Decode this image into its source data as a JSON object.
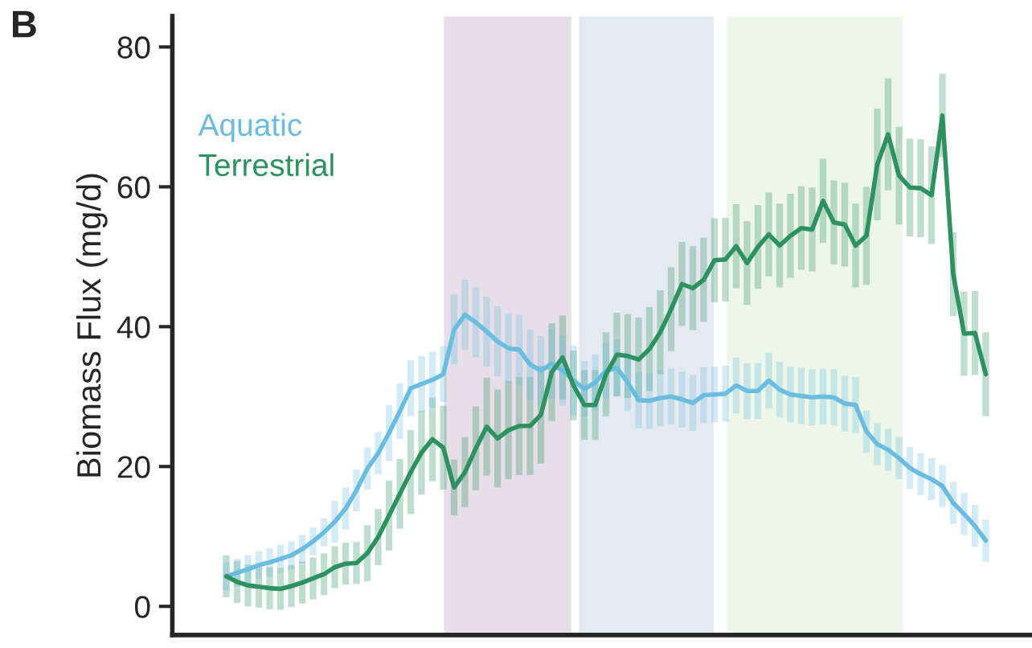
{
  "chart_data": {
    "type": "line",
    "title": "B",
    "ylabel": "Biomass Flux (mg/d)",
    "categories": [
      null,
      null,
      null,
      null,
      null,
      null,
      null,
      null,
      null,
      null,
      null,
      null,
      null,
      null,
      null,
      null,
      null,
      null,
      null,
      null,
      null,
      null,
      null,
      null,
      null,
      null,
      null,
      null,
      null,
      null,
      null,
      null,
      null,
      null,
      null,
      null,
      null,
      null,
      null,
      null,
      null,
      null,
      null,
      null,
      null,
      null,
      null,
      null,
      null,
      null,
      null,
      null,
      null,
      null,
      null,
      null,
      null,
      null,
      null,
      null,
      null,
      null,
      null,
      null,
      null,
      null,
      null,
      null,
      null,
      null,
      null
    ],
    "ylim": [
      -4.1,
      84.4
    ],
    "yticks": [
      0,
      20,
      40,
      60,
      80
    ],
    "grid": false,
    "marker": "none",
    "line_style": "solid",
    "series": [
      {
        "name": "Aquatic",
        "color": "#6bbde0",
        "values": [
          4.3,
          4.8,
          5.3,
          5.9,
          6.3,
          6.8,
          7.3,
          8.2,
          9.3,
          10.6,
          12.1,
          14.0,
          16.6,
          19.7,
          21.9,
          24.8,
          27.9,
          31.2,
          31.8,
          32.4,
          33.2,
          39.6,
          41.7,
          40.6,
          39.3,
          37.9,
          36.9,
          36.7,
          34.6,
          33.7,
          34.7,
          33.7,
          32.3,
          31.1,
          32.0,
          33.7,
          34.1,
          32.0,
          29.5,
          29.4,
          29.8,
          30.0,
          29.6,
          29.1,
          30.2,
          30.3,
          30.4,
          31.6,
          30.8,
          30.8,
          32.3,
          31.0,
          30.3,
          30.1,
          29.9,
          30.0,
          29.9,
          29.0,
          28.8,
          25.0,
          23.2,
          22.4,
          21.2,
          19.8,
          18.9,
          18.2,
          17.2,
          14.8,
          13.2,
          11.5,
          9.4
        ],
        "errors": [
          2,
          2,
          2,
          2,
          2,
          2,
          2,
          2,
          2,
          2,
          3,
          3,
          3,
          3,
          3,
          4,
          4,
          4,
          4,
          4,
          4,
          5,
          5,
          5,
          5,
          5,
          5,
          5,
          5,
          5,
          5,
          5,
          5,
          4,
          4,
          4,
          4,
          4,
          4,
          4,
          4,
          4,
          4,
          4,
          4,
          4,
          4,
          4,
          4,
          4,
          4,
          4,
          4,
          4,
          4,
          4,
          4,
          4,
          4,
          3,
          3,
          3,
          3,
          3,
          3,
          3,
          3,
          3,
          3,
          3,
          3
        ]
      },
      {
        "name": "Terrestrial",
        "color": "#2e9160",
        "values": [
          4.3,
          3.5,
          3.0,
          2.8,
          2.6,
          2.5,
          2.9,
          3.4,
          4.0,
          4.6,
          5.6,
          6.1,
          6.2,
          7.6,
          9.9,
          13.0,
          16.1,
          19.2,
          22.0,
          23.9,
          22.7,
          17.0,
          19.2,
          22.6,
          25.7,
          24.0,
          25.2,
          25.8,
          25.8,
          27.4,
          33.5,
          35.6,
          31.6,
          28.8,
          28.8,
          33.2,
          36.0,
          35.8,
          35.3,
          36.8,
          39.2,
          42.5,
          46.1,
          45.5,
          46.7,
          49.5,
          49.6,
          51.5,
          49.1,
          51.4,
          53.2,
          51.6,
          53.0,
          54.1,
          53.9,
          58.0,
          54.9,
          54.6,
          51.6,
          53.0,
          63.2,
          67.5,
          61.6,
          59.9,
          59.8,
          58.8,
          70.2,
          47.5,
          39.0,
          39.1,
          33.2
        ],
        "errors": [
          3,
          3,
          3,
          3,
          3,
          3,
          3,
          3,
          3,
          3,
          3,
          3,
          3,
          4,
          4,
          5,
          5,
          6,
          6,
          6,
          6,
          4,
          5,
          6,
          7,
          7,
          7,
          7,
          7,
          7,
          7,
          6,
          5,
          5,
          5,
          6,
          6,
          6,
          6,
          6,
          6,
          6,
          6,
          6,
          6,
          6,
          6,
          6,
          6,
          6,
          6,
          6,
          6,
          6,
          6,
          6,
          6,
          6,
          6,
          7,
          8,
          8,
          7,
          7,
          7,
          7,
          6,
          6,
          6,
          6,
          6
        ]
      }
    ]
  }
}
